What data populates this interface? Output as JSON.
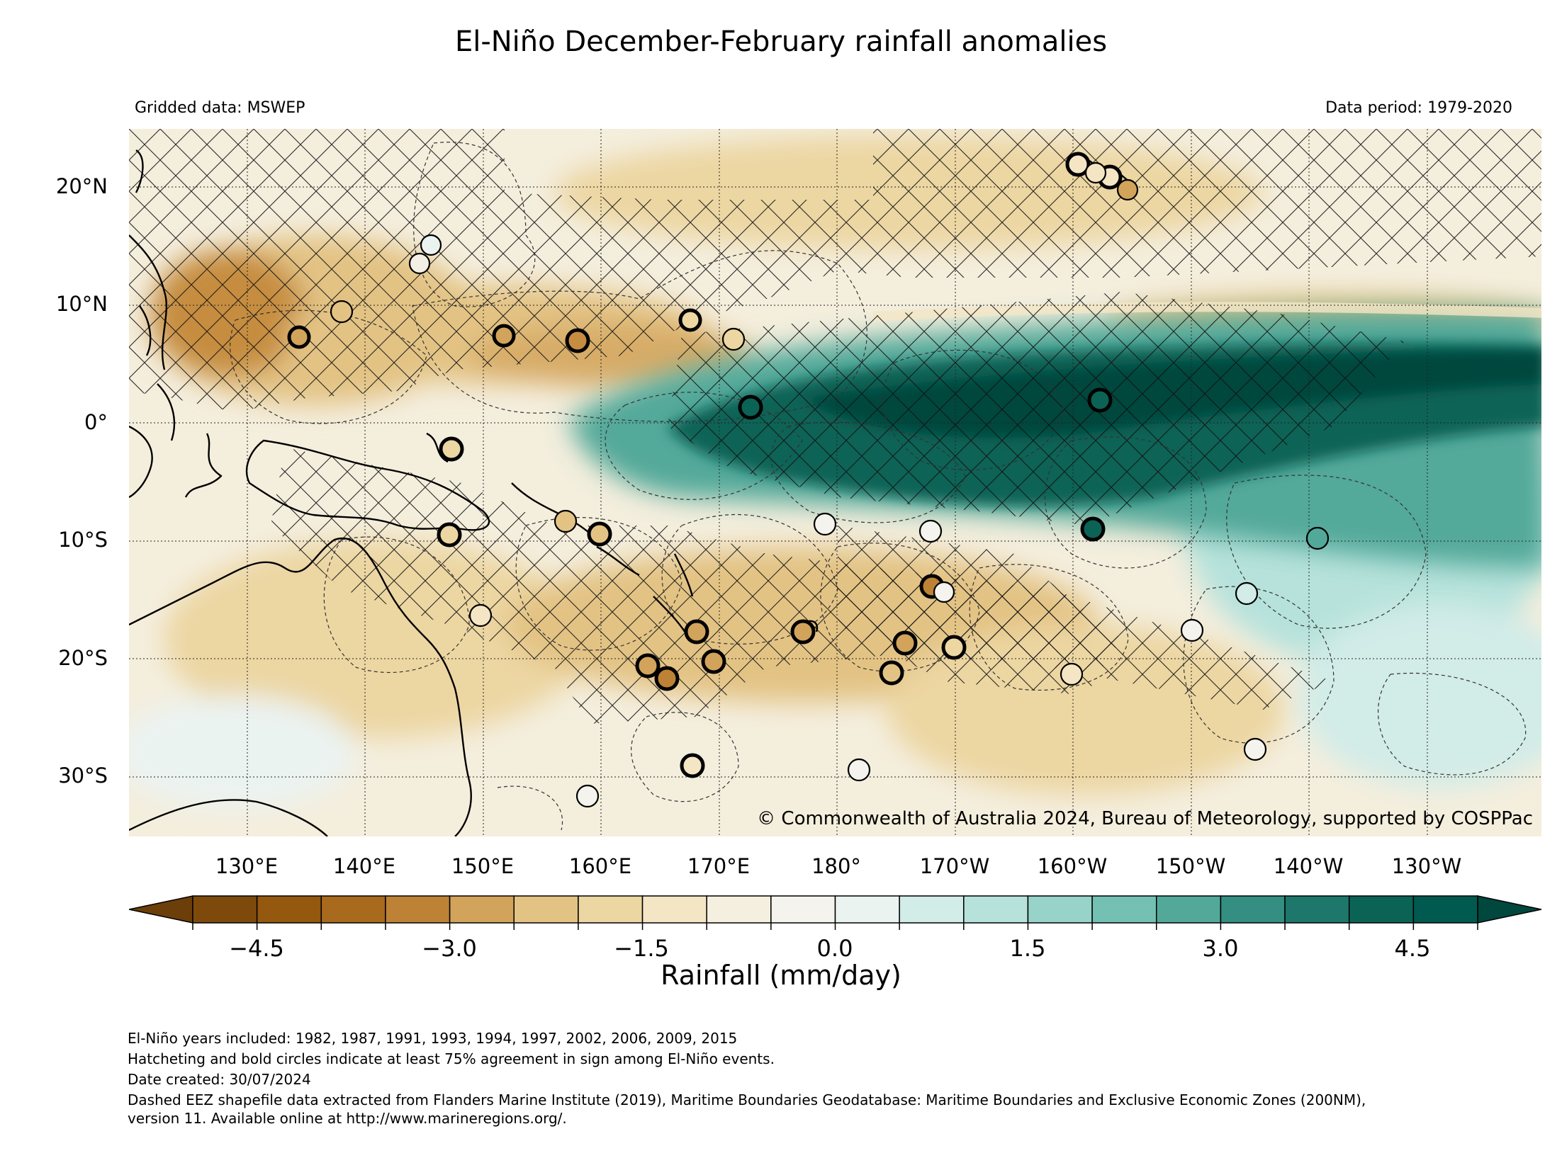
{
  "title": "El-Niño December-February rainfall anomalies",
  "source_left": "Gridded data: MSWEP",
  "source_right": "Data period: 1979-2020",
  "copyright": "© Commonwealth of Australia 2024, Bureau of Meteorology, supported by COSPPac",
  "lat_labels": [
    "20°N",
    "10°N",
    "0°",
    "10°S",
    "20°S",
    "30°S"
  ],
  "lon_labels": [
    "130°E",
    "140°E",
    "150°E",
    "160°E",
    "170°E",
    "180°",
    "170°W",
    "160°W",
    "150°W",
    "140°W",
    "130°W"
  ],
  "colorbar": {
    "label": "Rainfall (mm/day)",
    "tick_labels": [
      "−4.5",
      "−3.0",
      "−1.5",
      "0.0",
      "1.5",
      "3.0",
      "4.5"
    ],
    "range": [
      -5.0,
      5.0
    ],
    "step": 0.5,
    "colors": [
      "#7e4a0c",
      "#94580f",
      "#a86a1d",
      "#be8236",
      "#d2a35b",
      "#e3c384",
      "#ecd6a2",
      "#f4e6c5",
      "#f5efe0",
      "#f4f3ed",
      "#ebf3f1",
      "#d2ece8",
      "#b6e2db",
      "#97d3c8",
      "#74c0b2",
      "#52a99a",
      "#348e81",
      "#1d776a",
      "#0b6356",
      "#015a4f"
    ],
    "extend_low": "#6c3e09",
    "extend_high": "#00473e"
  },
  "footer_lines": [
    "El-Niño years included: 1982, 1987, 1991, 1993, 1994, 1997, 2002, 2006, 2009, 2015",
    "Hatcheting and bold circles indicate at least 75% agreement in sign among El-Niño events.",
    "Date created: 30/07/2024",
    "Dashed EEZ shapefile data extracted from Flanders Marine Institute (2019), Maritime Boundaries Geodatabase: Maritime Boundaries and Exclusive Economic Zones (200NM),",
    "version 11. Available online at http://www.marineregions.org/."
  ]
}
